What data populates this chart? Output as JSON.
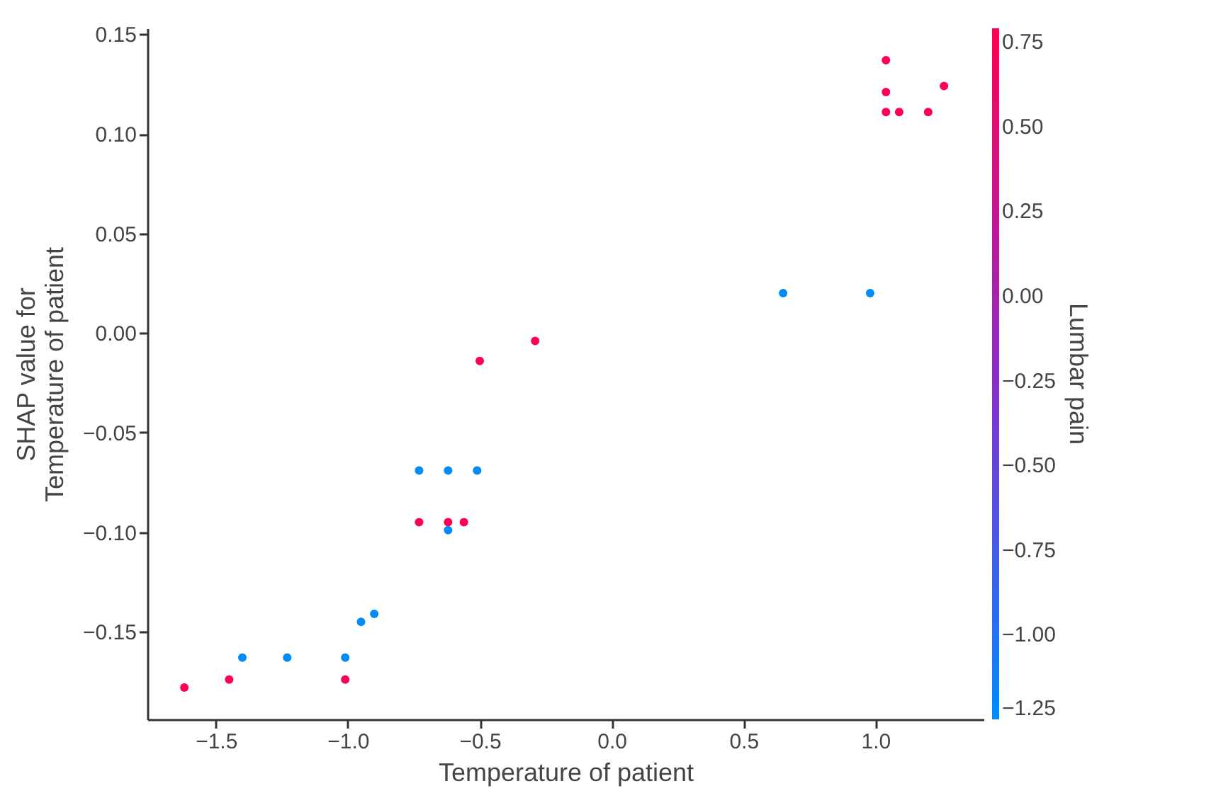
{
  "chart_data": {
    "type": "scatter",
    "xlabel": "Temperature of patient",
    "ylabel": "SHAP value for\nTemperature of patient",
    "clabel": "Lumbar pain",
    "xlim": [
      -1.76,
      1.41
    ],
    "ylim": [
      -0.194,
      0.153
    ],
    "xticks": [
      -1.5,
      {
        "value": -1,
        "label": "−1.0"
      },
      -0.5,
      {
        "value": 0,
        "label": "0.0"
      },
      0.5,
      {
        "value": 1,
        "label": "1.0"
      }
    ],
    "yticks": [
      -0.15,
      {
        "value": -0.1,
        "label": "−0.10"
      },
      -0.05,
      {
        "value": 0,
        "label": "0.00"
      },
      0.05,
      {
        "value": 0.1,
        "label": "0.10"
      },
      0.15
    ],
    "clim": [
      -1.25,
      0.79
    ],
    "cticks": [
      -1.25,
      {
        "value": -1,
        "label": "−1.00"
      },
      -0.75,
      {
        "value": -0.5,
        "label": "−0.50"
      },
      -0.25,
      {
        "value": 0,
        "label": "0.00"
      },
      0.25,
      {
        "value": 0.5,
        "label": "0.50"
      },
      0.75
    ],
    "marker": "circle",
    "grid": false,
    "series": [
      {
        "x": [
          -1.62,
          -1.45,
          -1.4,
          -1.23,
          -1.01,
          -1.01,
          -0.95,
          -0.9,
          -0.73,
          -0.62,
          -0.51,
          -0.73,
          -0.62,
          -0.62,
          -0.56,
          -0.5,
          -0.29,
          0.65,
          0.98,
          1.04,
          1.04,
          1.26,
          1.04,
          1.09,
          1.2
        ],
        "values": [
          -0.178,
          -0.174,
          -0.163,
          -0.163,
          -0.163,
          -0.174,
          -0.145,
          -0.141,
          -0.069,
          -0.069,
          -0.069,
          -0.095,
          -0.095,
          -0.099,
          -0.095,
          -0.014,
          -0.004,
          0.02,
          0.02,
          0.137,
          0.121,
          0.124,
          0.111,
          0.111,
          0.111
        ],
        "cvalues": [
          0.79,
          0.79,
          -1.25,
          -1.25,
          -1.25,
          0.79,
          -1.25,
          -1.25,
          -1.25,
          -1.25,
          -1.25,
          0.79,
          0.79,
          -1.25,
          0.79,
          0.79,
          0.79,
          -1.25,
          -1.25,
          0.79,
          0.79,
          0.79,
          0.79,
          0.79,
          0.79
        ]
      }
    ]
  }
}
